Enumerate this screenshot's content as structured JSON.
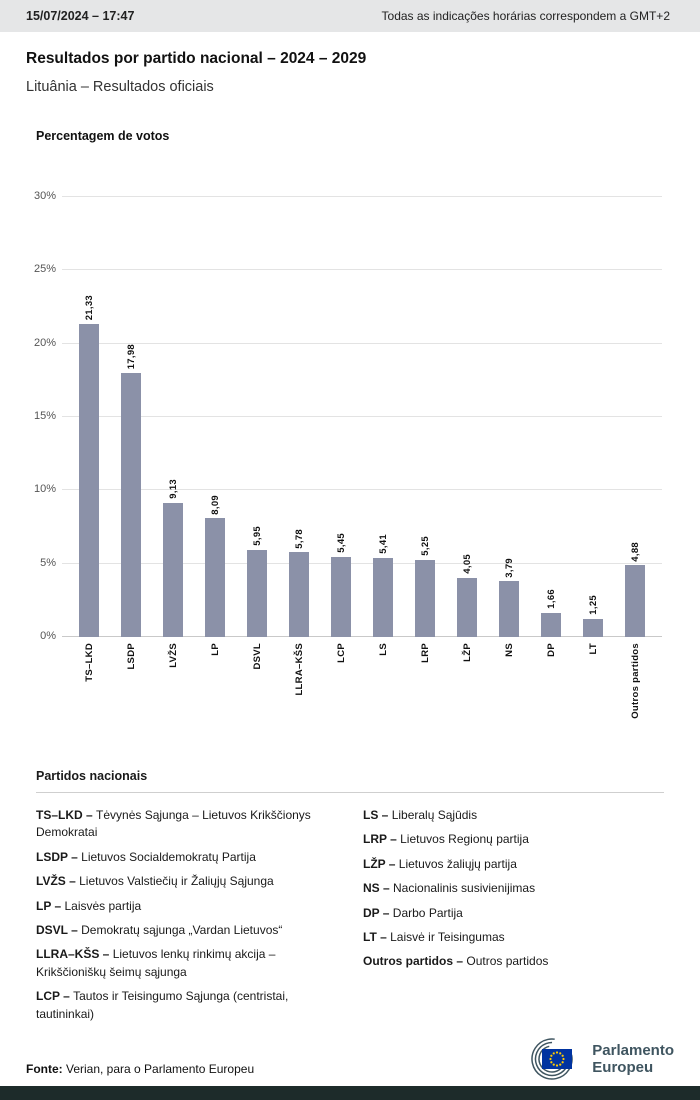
{
  "top_bar": {
    "datetime": "15/07/2024 – 17:47",
    "timezone_note": "Todas as indicações horárias correspondem a GMT+2"
  },
  "header": {
    "title": "Resultados por partido nacional – 2024 – 2029",
    "subtitle": "Lituânia – Resultados oficiais"
  },
  "chart_data": {
    "type": "bar",
    "title": "Percentagem de votos",
    "categories": [
      "TS–LKD",
      "LSDP",
      "LVŽS",
      "LP",
      "DSVL",
      "LLRA–KŠS",
      "LCP",
      "LS",
      "LRP",
      "LŽP",
      "NS",
      "DP",
      "LT",
      "Outros partidos"
    ],
    "values": [
      21.33,
      17.98,
      9.13,
      8.09,
      5.95,
      5.78,
      5.45,
      5.41,
      5.25,
      4.05,
      3.79,
      1.66,
      1.25,
      4.88
    ],
    "value_labels": [
      "21,33",
      "17,98",
      "9,13",
      "8,09",
      "5,95",
      "5,78",
      "5,45",
      "5,41",
      "5,25",
      "4,05",
      "3,79",
      "1,66",
      "1,25",
      "4,88"
    ],
    "xlabel": "",
    "ylabel": "",
    "ylim": [
      0,
      30
    ],
    "ytick_step": 5,
    "ytick_labels": [
      "0%",
      "5%",
      "10%",
      "15%",
      "20%",
      "25%",
      "30%"
    ],
    "grid": true,
    "legend_position": "none",
    "bar_color": "#8b91a8"
  },
  "legend": {
    "title": "Partidos nacionais",
    "columns": [
      [
        {
          "abbr": "TS–LKD –",
          "name": "Tėvynės Sąjunga – Lietuvos Krikščionys Demokratai"
        },
        {
          "abbr": "LSDP –",
          "name": "Lietuvos Socialdemokratų Partija"
        },
        {
          "abbr": "LVŽS –",
          "name": "Lietuvos Valstiečių ir Žaliųjų Sąjunga"
        },
        {
          "abbr": "LP –",
          "name": "Laisvės partija"
        },
        {
          "abbr": "DSVL –",
          "name": "Demokratų sąjunga „Vardan Lietuvos“"
        },
        {
          "abbr": "LLRA–KŠS –",
          "name": "Lietuvos lenkų rinkimų akcija – Krikščioniškų šeimų sąjunga"
        },
        {
          "abbr": "LCP –",
          "name": "Tautos ir Teisingumo Sąjunga (centristai, tautininkai)"
        }
      ],
      [
        {
          "abbr": "LS –",
          "name": "Liberalų Sąjūdis"
        },
        {
          "abbr": "LRP –",
          "name": "Lietuvos Regionų partija"
        },
        {
          "abbr": "LŽP –",
          "name": "Lietuvos žaliųjų partija"
        },
        {
          "abbr": "NS –",
          "name": "Nacionalinis susivienijimas"
        },
        {
          "abbr": "DP –",
          "name": "Darbo Partija"
        },
        {
          "abbr": "LT –",
          "name": "Laisvė ir Teisingumas"
        },
        {
          "abbr": "Outros partidos –",
          "name": "Outros partidos"
        }
      ]
    ]
  },
  "footer": {
    "source_label": "Fonte:",
    "source_text": " Verian, para o Parlamento Europeu",
    "logo_line1": "Parlamento",
    "logo_line2": "Europeu"
  },
  "colors": {
    "bar": "#8b91a8",
    "topbar_bg": "#e5e6e7",
    "gridline": "#e3e3e3",
    "bottom_bar": "#1d2b2a",
    "logo_text": "#3f5560",
    "flag_blue": "#0033a0",
    "star_yellow": "#ffcc00"
  }
}
